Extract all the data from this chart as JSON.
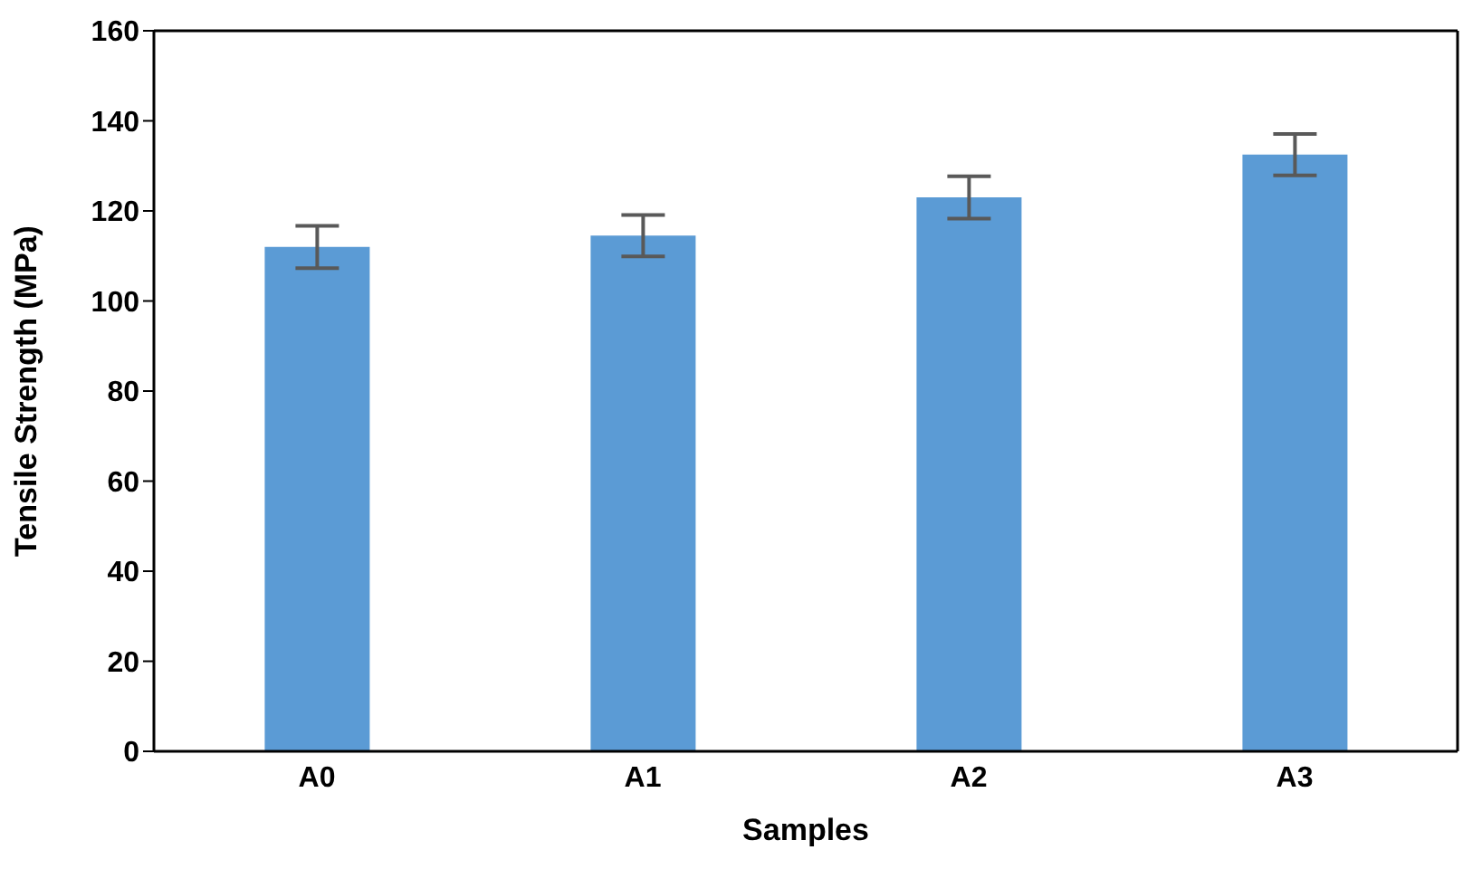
{
  "chart_data": {
    "type": "bar",
    "xlabel": "Samples",
    "ylabel": "Tensile Strength (MPa)",
    "categories": [
      "A0",
      "A1",
      "A2",
      "A3"
    ],
    "values": [
      112,
      114.5,
      123,
      132.5
    ],
    "errors": [
      4.7,
      4.6,
      4.7,
      4.6
    ],
    "color": "#5b9bd5",
    "ylim": [
      0,
      160
    ],
    "yticks": [
      0,
      20,
      40,
      60,
      80,
      100,
      120,
      140,
      160
    ],
    "grid": false
  }
}
